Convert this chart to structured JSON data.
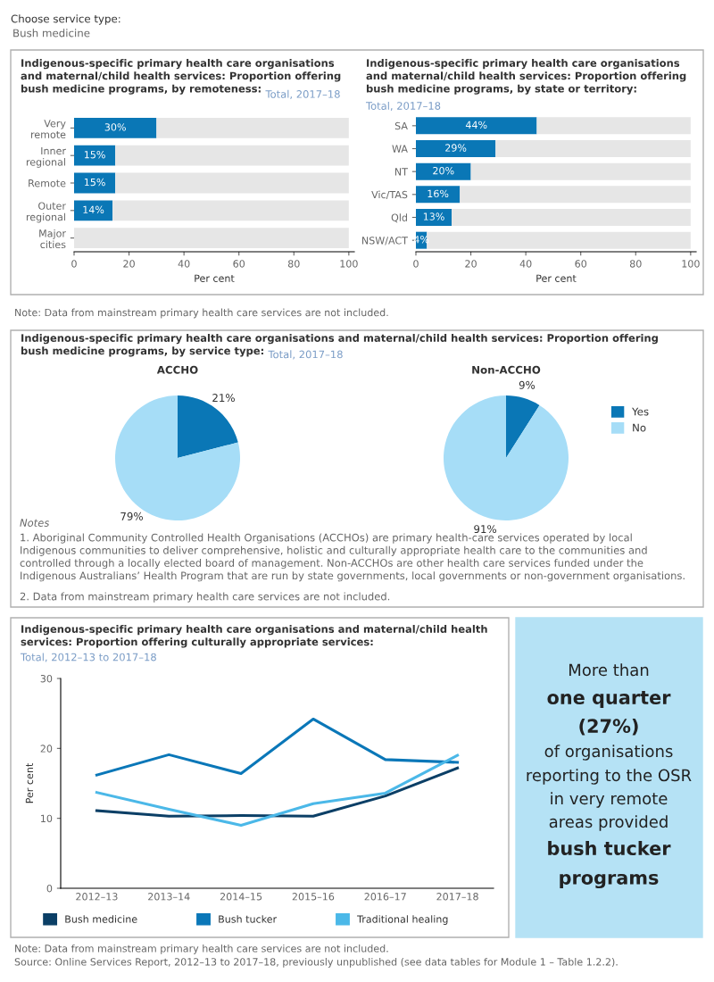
{
  "chart_data": [
    {
      "type": "bar",
      "orientation": "horizontal",
      "stacked": true,
      "title": "Indigenous-specific primary health care organisations and maternal/child health services: Proportion offering bush medicine programs, by remoteness:",
      "subtitle": "Total, 2017–18",
      "xlabel": "Per cent",
      "categories": [
        "Very remote",
        "Inner regional",
        "Remote",
        "Outer regional",
        "Major cities"
      ],
      "series": [
        {
          "color": "#0a77b6",
          "values": [
            30,
            15,
            15,
            14,
            0
          ],
          "value_labels": [
            "30%",
            "15%",
            "15%",
            "14%",
            null
          ]
        },
        {
          "color": "#e6e6e6",
          "values": [
            70,
            85,
            85,
            86,
            100
          ]
        }
      ],
      "xlim": [
        0,
        102
      ],
      "xticks": [
        0,
        20,
        40,
        60,
        80,
        100
      ],
      "grid": false,
      "legend": false,
      "annotations": [
        "Choose service type:",
        "Bush medicine",
        "Note: Data from mainstream primary health care services are not included."
      ]
    },
    {
      "type": "bar",
      "orientation": "horizontal",
      "stacked": true,
      "title": "Indigenous-specific primary health care organisations and maternal/child health services: Proportion offering bush medicine programs, by state or territory:",
      "subtitle": "Total, 2017–18",
      "xlabel": "Per cent",
      "categories": [
        "SA",
        "WA",
        "NT",
        "Vic/TAS",
        "Qld",
        "NSW/ACT"
      ],
      "series": [
        {
          "color": "#0a77b6",
          "values": [
            44,
            29,
            20,
            16,
            13,
            4
          ],
          "value_labels": [
            "44%",
            "29%",
            "20%",
            "16%",
            "13%",
            "4%"
          ]
        },
        {
          "color": "#e6e6e6",
          "values": [
            56,
            71,
            80,
            84,
            87,
            96
          ]
        }
      ],
      "xlim": [
        0,
        102
      ],
      "xticks": [
        0,
        20,
        40,
        60,
        80,
        100
      ],
      "grid": false,
      "legend": false
    },
    {
      "type": "pie",
      "title": "Indigenous-specific primary health care organisations and maternal/child health services: Proportion offering bush medicine programs, by service type:",
      "subtitle": "Total, 2017–18",
      "categories": [
        "Yes",
        "No"
      ],
      "colors": [
        "#0a77b6",
        "#a6ddf7"
      ],
      "legend": "right",
      "series": [
        {
          "name": "ACCHO",
          "values": [
            21,
            79
          ],
          "value_labels": [
            "21%",
            "79%"
          ]
        },
        {
          "name": "Non-ACCHO",
          "values": [
            9,
            91
          ],
          "value_labels": [
            "9%",
            "91%"
          ]
        }
      ],
      "annotations": [
        "Notes",
        "1. Aboriginal Community Controlled Health Organisations (ACCHOs) are primary health-care services operated by local Indigenous communities to deliver comprehensive, holistic and culturally appropriate health care to the communities and controlled through a locally elected board of management. Non-ACCHOs are other health care services funded under the Indigenous Australians’ Health Program that are run by state governments, local governments or non-government organisations.",
        "2. Data from mainstream primary health care services are not included."
      ]
    },
    {
      "type": "line",
      "title": "Indigenous-specific primary health care organisations and maternal/child health services: Proportion offering culturally appropriate services:",
      "subtitle": "Total, 2012–13 to 2017–18",
      "ylabel": "Per cent",
      "categories": [
        "2012–13",
        "2013–14",
        "2014–15",
        "2015–16",
        "2016–17",
        "2017–18"
      ],
      "series": [
        {
          "name": "Bush medicine",
          "color": "#0b3f66",
          "values": [
            11.1,
            10.3,
            10.4,
            10.3,
            13.2,
            17.2
          ]
        },
        {
          "name": "Bush tucker",
          "color": "#0a77b8",
          "values": [
            16.2,
            19.1,
            16.4,
            24.2,
            18.4,
            18.0
          ]
        },
        {
          "name": "Traditional healing",
          "color": "#4bb8e8",
          "values": [
            13.7,
            11.3,
            9.0,
            12.1,
            13.6,
            19.0
          ]
        }
      ],
      "ylim": [
        0,
        30
      ],
      "yticks": [
        0,
        10,
        20,
        30
      ],
      "grid": false,
      "legend": "bottom",
      "marker": "none",
      "line_style": "solid",
      "annotations": [
        "Note: Data from mainstream primary health care services are not included.",
        "Source: Online Services Report, 2012–13 to 2017–18, previously unpublished (see data tables for Module 1 – Table 1.2.2)."
      ]
    },
    {
      "type": "other",
      "annotations": [
        "More than",
        "one quarter",
        "(27%)",
        "of organisations",
        "reporting to the OSR",
        "in very remote",
        "areas provided",
        "bush tucker",
        "programs"
      ]
    }
  ]
}
